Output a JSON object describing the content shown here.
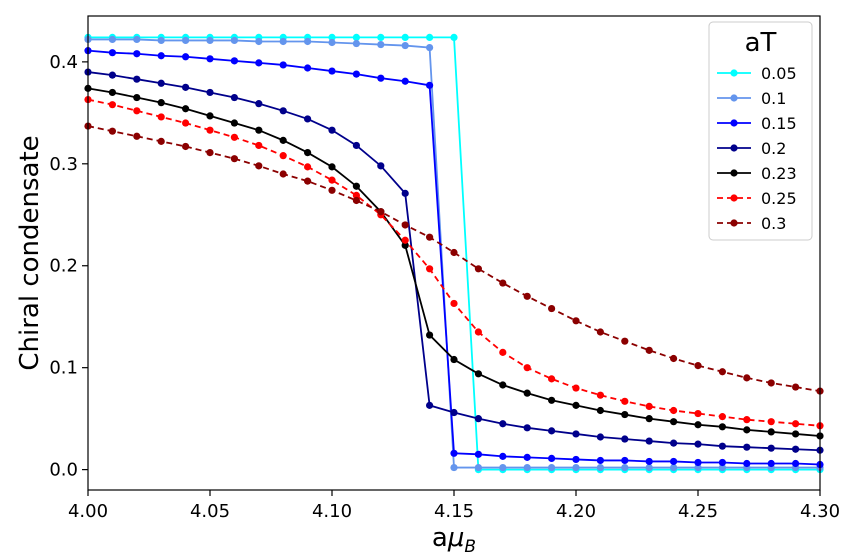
{
  "chart_data": {
    "type": "line",
    "xlabel": "aμ_B",
    "ylabel": "Chiral condensate",
    "xlim": [
      4.0,
      4.3
    ],
    "ylim": [
      -0.02,
      0.445
    ],
    "x_ticks": [
      4.0,
      4.05,
      4.1,
      4.15,
      4.2,
      4.25,
      4.3
    ],
    "x_tick_labels": [
      "4.00",
      "4.05",
      "4.10",
      "4.15",
      "4.20",
      "4.25",
      "4.30"
    ],
    "y_ticks": [
      0.0,
      0.1,
      0.2,
      0.3,
      0.4
    ],
    "y_tick_labels": [
      "0.0",
      "0.1",
      "0.2",
      "0.3",
      "0.4"
    ],
    "grid": false,
    "legend": {
      "title": "aT",
      "placement": "top-right"
    },
    "x": [
      4.0,
      4.01,
      4.02,
      4.03,
      4.04,
      4.05,
      4.06,
      4.07,
      4.08,
      4.09,
      4.1,
      4.11,
      4.12,
      4.13,
      4.14,
      4.15,
      4.16,
      4.17,
      4.18,
      4.19,
      4.2,
      4.21,
      4.22,
      4.23,
      4.24,
      4.25,
      4.26,
      4.27,
      4.28,
      4.29,
      4.3
    ],
    "series": [
      {
        "name": "0.05",
        "color": "#00ffff",
        "dashed": false,
        "values": [
          0.424,
          0.424,
          0.424,
          0.424,
          0.424,
          0.424,
          0.424,
          0.424,
          0.424,
          0.424,
          0.424,
          0.424,
          0.424,
          0.424,
          0.424,
          0.424,
          0.0,
          0.0,
          0.0,
          0.0,
          0.0,
          0.0,
          0.0,
          0.0,
          0.0,
          0.0,
          0.0,
          0.0,
          0.0,
          0.0,
          0.0
        ]
      },
      {
        "name": "0.1",
        "color": "#6495ed",
        "dashed": false,
        "values": [
          0.422,
          0.422,
          0.422,
          0.421,
          0.421,
          0.421,
          0.421,
          0.42,
          0.42,
          0.42,
          0.419,
          0.418,
          0.417,
          0.416,
          0.414,
          0.002,
          0.002,
          0.002,
          0.002,
          0.002,
          0.002,
          0.002,
          0.002,
          0.002,
          0.002,
          0.002,
          0.002,
          0.002,
          0.002,
          0.002,
          0.002
        ]
      },
      {
        "name": "0.15",
        "color": "#0000ff",
        "dashed": false,
        "values": [
          0.411,
          0.409,
          0.408,
          0.406,
          0.405,
          0.403,
          0.401,
          0.399,
          0.397,
          0.394,
          0.391,
          0.388,
          0.384,
          0.381,
          0.377,
          0.016,
          0.015,
          0.013,
          0.012,
          0.011,
          0.01,
          0.009,
          0.009,
          0.008,
          0.008,
          0.007,
          0.007,
          0.006,
          0.006,
          0.006,
          0.005
        ]
      },
      {
        "name": "0.2",
        "color": "#00008b",
        "dashed": false,
        "values": [
          0.39,
          0.387,
          0.383,
          0.379,
          0.375,
          0.37,
          0.365,
          0.359,
          0.352,
          0.344,
          0.333,
          0.318,
          0.298,
          0.271,
          0.063,
          0.056,
          0.05,
          0.045,
          0.041,
          0.038,
          0.035,
          0.032,
          0.03,
          0.028,
          0.026,
          0.025,
          0.023,
          0.022,
          0.021,
          0.02,
          0.019
        ]
      },
      {
        "name": "0.23",
        "color": "#000000",
        "dashed": false,
        "values": [
          0.374,
          0.37,
          0.365,
          0.36,
          0.354,
          0.347,
          0.34,
          0.333,
          0.323,
          0.311,
          0.297,
          0.278,
          0.253,
          0.22,
          0.132,
          0.108,
          0.094,
          0.083,
          0.075,
          0.068,
          0.063,
          0.058,
          0.054,
          0.05,
          0.047,
          0.044,
          0.042,
          0.039,
          0.037,
          0.035,
          0.033
        ]
      },
      {
        "name": "0.25",
        "color": "#ff0000",
        "dashed": true,
        "values": [
          0.363,
          0.358,
          0.352,
          0.346,
          0.34,
          0.333,
          0.326,
          0.318,
          0.308,
          0.297,
          0.284,
          0.269,
          0.25,
          0.225,
          0.197,
          0.163,
          0.135,
          0.115,
          0.1,
          0.089,
          0.08,
          0.073,
          0.067,
          0.062,
          0.058,
          0.055,
          0.052,
          0.049,
          0.047,
          0.045,
          0.043
        ]
      },
      {
        "name": "0.3",
        "color": "#8b0000",
        "dashed": true,
        "values": [
          0.337,
          0.332,
          0.327,
          0.322,
          0.317,
          0.311,
          0.305,
          0.298,
          0.29,
          0.283,
          0.274,
          0.264,
          0.253,
          0.24,
          0.228,
          0.213,
          0.197,
          0.183,
          0.17,
          0.158,
          0.146,
          0.135,
          0.126,
          0.117,
          0.109,
          0.102,
          0.096,
          0.09,
          0.085,
          0.081,
          0.077
        ]
      }
    ]
  }
}
